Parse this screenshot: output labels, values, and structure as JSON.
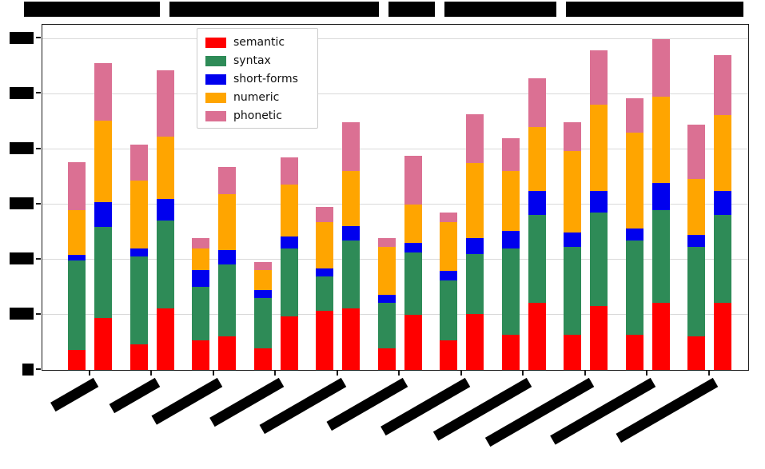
{
  "figure": {
    "background": "#ffffff",
    "note": "matplotlib-style stacked bar chart; title, y-axis tick labels and x-axis category labels are blacked-out/redacted in the source image"
  },
  "legend": {
    "position": "upper-left-inside-plot"
  },
  "chart_data": {
    "type": "bar",
    "stacked": true,
    "title": "[redacted]",
    "xlabel": "[redacted]",
    "ylabel": "[redacted]",
    "grid": "horizontal",
    "legend_position": "upper left",
    "series_labels": [
      "semantic",
      "syntax",
      "short-forms",
      "numeric",
      "phonetic"
    ],
    "colors": [
      "#ff0000",
      "#2e8b57",
      "#0000ee",
      "#ffa500",
      "#db7093"
    ],
    "ylim": [
      0,
      100
    ],
    "units": "relative (axis tick labels redacted in source image)",
    "ytick_positions_pct": [
      0,
      16,
      32,
      48,
      64,
      80,
      96
    ],
    "categories": [
      "[redacted]",
      "[redacted]",
      "[redacted]",
      "[redacted]",
      "[redacted]",
      "[redacted]",
      "[redacted]",
      "[redacted]",
      "[redacted]",
      "[redacted]",
      "[redacted]"
    ],
    "bars_per_category": 2,
    "groups": [
      {
        "category": "[redacted]",
        "bars": [
          [
            5.8,
            25.9,
            1.6,
            13.0,
            13.9
          ],
          [
            15.0,
            26.4,
            7.2,
            23.6,
            16.7
          ]
        ]
      },
      {
        "category": "[redacted]",
        "bars": [
          [
            7.4,
            25.5,
            2.3,
            19.7,
            10.4
          ],
          [
            17.8,
            25.5,
            6.3,
            18.1,
            19.2
          ]
        ]
      },
      {
        "category": "[redacted]",
        "bars": [
          [
            8.6,
            15.5,
            4.9,
            6.3,
            3.0
          ],
          [
            9.7,
            20.8,
            4.2,
            16.2,
            7.9
          ]
        ]
      },
      {
        "category": "[redacted]",
        "bars": [
          [
            6.3,
            14.6,
            2.3,
            5.8,
            2.3
          ],
          [
            15.5,
            19.7,
            3.5,
            15.0,
            7.9
          ]
        ]
      },
      {
        "category": "[redacted]",
        "bars": [
          [
            17.1,
            10.0,
            2.3,
            13.4,
            4.4
          ],
          [
            17.8,
            19.7,
            4.2,
            16.0,
            14.1
          ]
        ]
      },
      {
        "category": "[redacted]",
        "bars": [
          [
            6.3,
            13.2,
            2.3,
            13.9,
            2.5
          ],
          [
            16.0,
            18.1,
            2.8,
            11.1,
            14.1
          ]
        ]
      },
      {
        "category": "[redacted]",
        "bars": [
          [
            8.6,
            17.4,
            2.8,
            14.1,
            2.8
          ],
          [
            16.2,
            17.4,
            4.6,
            21.8,
            14.1
          ]
        ]
      },
      {
        "category": "[redacted]",
        "bars": [
          [
            10.2,
            25.0,
            5.1,
            17.4,
            9.5
          ],
          [
            19.4,
            25.5,
            6.9,
            18.5,
            14.1
          ]
        ]
      },
      {
        "category": "[redacted]",
        "bars": [
          [
            10.2,
            25.5,
            4.2,
            23.6,
            8.3
          ],
          [
            18.5,
            27.1,
            6.3,
            25.0,
            15.7
          ]
        ]
      },
      {
        "category": "[redacted]",
        "bars": [
          [
            10.2,
            27.3,
            3.5,
            27.8,
            10.0
          ],
          [
            19.4,
            26.9,
            7.9,
            25.0,
            16.7
          ]
        ]
      },
      {
        "category": "[redacted]",
        "bars": [
          [
            9.7,
            25.9,
            3.5,
            16.2,
            15.7
          ],
          [
            19.4,
            25.5,
            6.9,
            22.0,
            17.4
          ]
        ]
      }
    ]
  },
  "redactions": {
    "title_segment_widths": [
      170,
      262,
      58,
      140,
      222
    ],
    "title_segment_gap": 12,
    "ytick_label_widths": [
      14,
      30,
      30,
      30,
      30,
      30,
      30
    ],
    "xtick_label_lengths": [
      62,
      66,
      95,
      100,
      118,
      110,
      122,
      135,
      150,
      145,
      140
    ]
  }
}
